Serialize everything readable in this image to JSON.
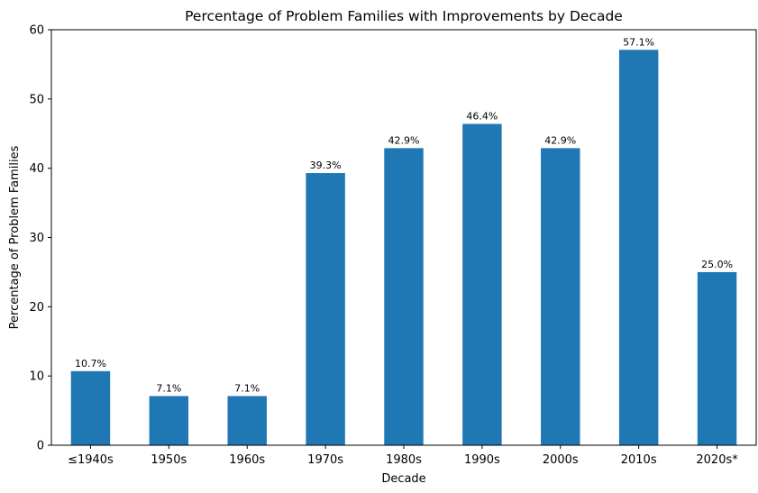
{
  "chart_data": {
    "type": "bar",
    "title": "Percentage of Problem Families with Improvements by Decade",
    "xlabel": "Decade",
    "ylabel": "Percentage of Problem Families",
    "categories": [
      "≤1940s",
      "1950s",
      "1960s",
      "1970s",
      "1980s",
      "1990s",
      "2000s",
      "2010s",
      "2020s*"
    ],
    "values": [
      10.7,
      7.1,
      7.1,
      39.3,
      42.9,
      46.4,
      42.9,
      57.1,
      25.0
    ],
    "data_labels": [
      "10.7%",
      "7.1%",
      "7.1%",
      "39.3%",
      "42.9%",
      "46.4%",
      "42.9%",
      "57.1%",
      "25.0%"
    ],
    "ylim": [
      0,
      60
    ],
    "yticks": [
      0,
      10,
      20,
      30,
      40,
      50,
      60
    ],
    "bar_color": "#1f77b4",
    "grid": false,
    "legend": false
  }
}
